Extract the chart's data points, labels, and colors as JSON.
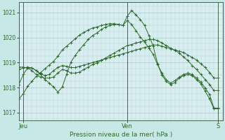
{
  "background_color": "#c8e8e8",
  "plot_bg_color": "#d8eef0",
  "grid_color_major": "#9bbcbc",
  "grid_color_minor": "#b8d4d4",
  "line_color": "#2d6a2d",
  "title": "Pression niveau de la mer( hPa )",
  "xlabel_jeu": "Jeu",
  "xlabel_ven": "Ven",
  "xlabel_s": "S",
  "ylim": [
    1016.7,
    1021.4
  ],
  "yticks": [
    1017,
    1018,
    1019,
    1020,
    1021
  ],
  "xlim": [
    0,
    47
  ],
  "jeu_x": 1,
  "ven_x": 25,
  "s_x": 46,
  "series": [
    [
      1017.55,
      1017.75,
      1018.05,
      1018.25,
      1018.45,
      1018.6,
      1018.75,
      1018.9,
      1019.05,
      1019.25,
      1019.5,
      1019.65,
      1019.8,
      1019.95,
      1020.1,
      1020.2,
      1020.3,
      1020.38,
      1020.42,
      1020.48,
      1020.52,
      1020.55,
      1020.55,
      1020.52,
      1020.48,
      1020.85,
      1021.08,
      1020.9,
      1020.72,
      1020.48,
      1020.08,
      1019.65,
      1018.95,
      1018.5,
      1018.25,
      1018.12,
      1018.2,
      1018.38,
      1018.48,
      1018.52,
      1018.48,
      1018.32,
      1018.15,
      1017.85,
      1017.55,
      1017.15,
      1017.15
    ],
    [
      1018.72,
      1018.78,
      1018.82,
      1018.78,
      1018.68,
      1018.55,
      1018.48,
      1018.52,
      1018.68,
      1018.8,
      1018.88,
      1018.85,
      1018.8,
      1018.8,
      1018.85,
      1018.9,
      1018.95,
      1019.0,
      1019.05,
      1019.1,
      1019.15,
      1019.2,
      1019.25,
      1019.3,
      1019.35,
      1019.4,
      1019.45,
      1019.5,
      1019.55,
      1019.6,
      1019.65,
      1019.7,
      1019.7,
      1019.65,
      1019.6,
      1019.55,
      1019.5,
      1019.45,
      1019.4,
      1019.3,
      1019.2,
      1019.1,
      1018.95,
      1018.8,
      1018.6,
      1018.38,
      1018.38
    ],
    [
      1018.82,
      1018.82,
      1018.78,
      1018.68,
      1018.52,
      1018.42,
      1018.38,
      1018.38,
      1018.42,
      1018.58,
      1018.72,
      1018.68,
      1018.58,
      1018.58,
      1018.62,
      1018.72,
      1018.82,
      1018.92,
      1018.98,
      1019.08,
      1019.18,
      1019.28,
      1019.38,
      1019.48,
      1019.58,
      1019.68,
      1019.72,
      1019.78,
      1019.82,
      1019.88,
      1019.92,
      1019.92,
      1019.88,
      1019.78,
      1019.68,
      1019.58,
      1019.48,
      1019.38,
      1019.22,
      1019.08,
      1018.88,
      1018.72,
      1018.52,
      1018.32,
      1018.12,
      1017.88,
      1017.88
    ],
    [
      1018.12,
      1018.52,
      1018.78,
      1018.78,
      1018.68,
      1018.52,
      1018.32,
      1018.18,
      1018.02,
      1017.82,
      1018.02,
      1018.52,
      1019.02,
      1019.28,
      1019.52,
      1019.72,
      1019.92,
      1020.08,
      1020.18,
      1020.32,
      1020.42,
      1020.48,
      1020.52,
      1020.52,
      1020.48,
      1020.68,
      1020.52,
      1020.28,
      1020.02,
      1019.82,
      1019.58,
      1019.32,
      1018.92,
      1018.58,
      1018.32,
      1018.18,
      1018.28,
      1018.42,
      1018.52,
      1018.58,
      1018.52,
      1018.38,
      1018.22,
      1017.98,
      1017.72,
      1017.18,
      1017.18
    ]
  ]
}
